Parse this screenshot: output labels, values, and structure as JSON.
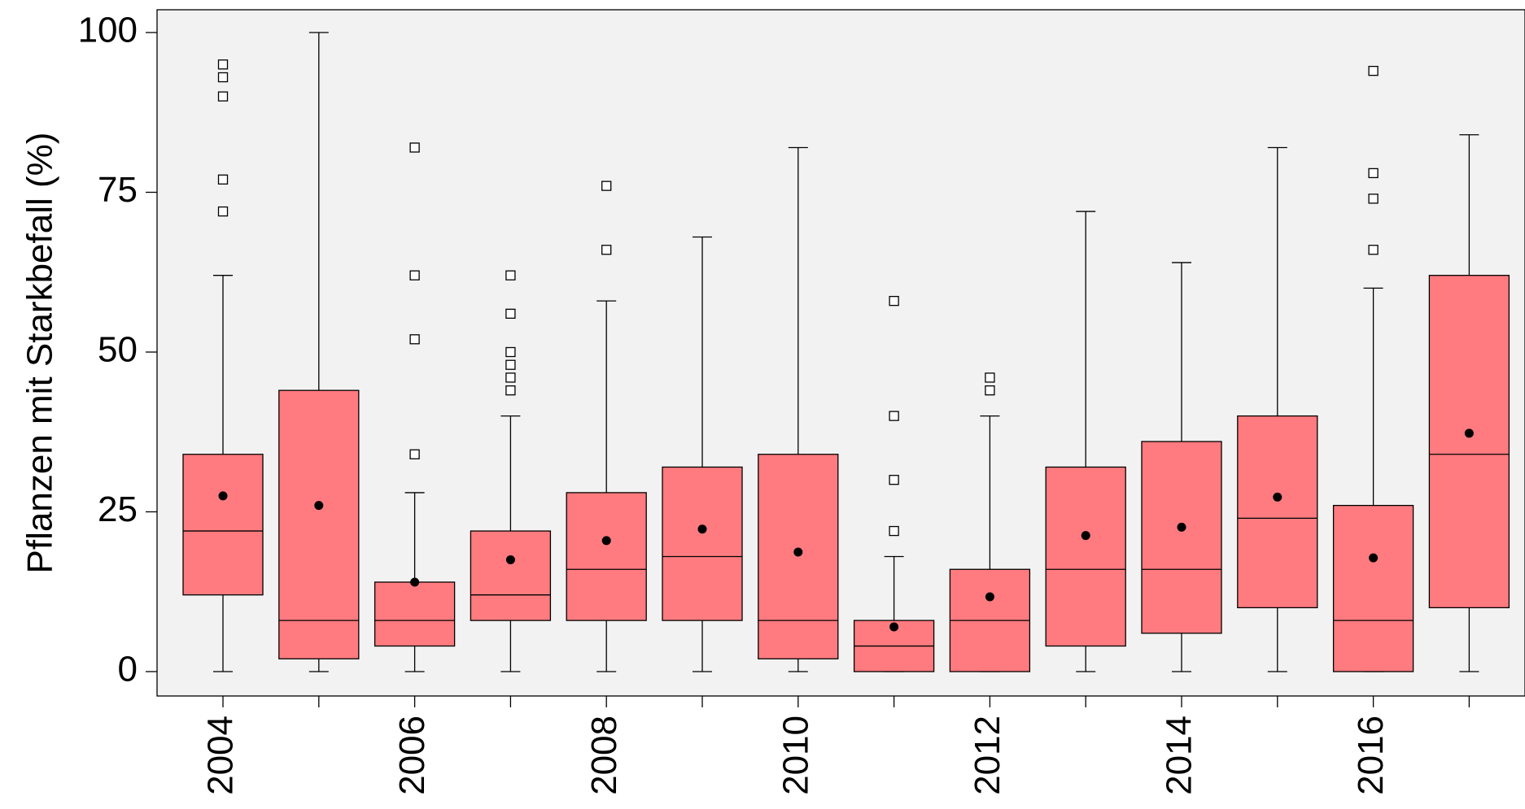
{
  "chart_data": {
    "type": "box",
    "ylabel": "Pflanzen mit Starkbefall  (%)",
    "xlabel": "",
    "ylim": [
      -4,
      104
    ],
    "yticks": [
      0,
      25,
      50,
      75,
      100
    ],
    "x_tick_labels": [
      "2004",
      "2006",
      "2008",
      "2010",
      "2012",
      "2014",
      "2016"
    ],
    "background_color": "#f2f2f2",
    "box_color": "#ff7b7f",
    "grid": false,
    "categories": [
      "2004",
      "2005",
      "2006",
      "2007",
      "2008",
      "2009",
      "2010",
      "2011",
      "2012",
      "2013",
      "2014",
      "2015",
      "2016",
      "2017"
    ],
    "boxes": [
      {
        "year": "2004",
        "whisker_low": 0,
        "q1": 12,
        "median": 22,
        "q3": 34,
        "whisker_high": 62,
        "mean": 27.5,
        "outliers": [
          72,
          77,
          90,
          93,
          95
        ]
      },
      {
        "year": "2005",
        "whisker_low": 0,
        "q1": 2,
        "median": 8,
        "q3": 44,
        "whisker_high": 100,
        "mean": 26,
        "outliers": []
      },
      {
        "year": "2006",
        "whisker_low": 0,
        "q1": 4,
        "median": 8,
        "q3": 14,
        "whisker_high": 28,
        "mean": 14,
        "outliers": [
          34,
          52,
          62,
          82
        ]
      },
      {
        "year": "2007",
        "whisker_low": 0,
        "q1": 8,
        "median": 12,
        "q3": 22,
        "whisker_high": 40,
        "mean": 17.5,
        "outliers": [
          44,
          46,
          48,
          50,
          56,
          62
        ]
      },
      {
        "year": "2008",
        "whisker_low": 0,
        "q1": 8,
        "median": 16,
        "q3": 28,
        "whisker_high": 58,
        "mean": 20.5,
        "outliers": [
          66,
          76
        ]
      },
      {
        "year": "2009",
        "whisker_low": 0,
        "q1": 8,
        "median": 18,
        "q3": 32,
        "whisker_high": 68,
        "mean": 22.3,
        "outliers": []
      },
      {
        "year": "2010",
        "whisker_low": 0,
        "q1": 2,
        "median": 8,
        "q3": 34,
        "whisker_high": 82,
        "mean": 18.7,
        "outliers": []
      },
      {
        "year": "2011",
        "whisker_low": 0,
        "q1": 0,
        "median": 4,
        "q3": 8,
        "whisker_high": 18,
        "mean": 7,
        "outliers": [
          22,
          30,
          40,
          58
        ]
      },
      {
        "year": "2012",
        "whisker_low": 0,
        "q1": 0,
        "median": 8,
        "q3": 16,
        "whisker_high": 40,
        "mean": 11.7,
        "outliers": [
          44,
          46
        ]
      },
      {
        "year": "2013",
        "whisker_low": 0,
        "q1": 4,
        "median": 16,
        "q3": 32,
        "whisker_high": 72,
        "mean": 21.3,
        "outliers": []
      },
      {
        "year": "2014",
        "whisker_low": 0,
        "q1": 6,
        "median": 16,
        "q3": 36,
        "whisker_high": 64,
        "mean": 22.6,
        "outliers": []
      },
      {
        "year": "2015",
        "whisker_low": 0,
        "q1": 10,
        "median": 24,
        "q3": 40,
        "whisker_high": 82,
        "mean": 27.3,
        "outliers": []
      },
      {
        "year": "2016",
        "whisker_low": 0,
        "q1": 0,
        "median": 8,
        "q3": 26,
        "whisker_high": 60,
        "mean": 17.8,
        "outliers": [
          66,
          74,
          78,
          94
        ]
      },
      {
        "year": "2017",
        "whisker_low": 0,
        "q1": 10,
        "median": 34,
        "q3": 62,
        "whisker_high": 84,
        "mean": 37.3,
        "outliers": []
      }
    ]
  }
}
